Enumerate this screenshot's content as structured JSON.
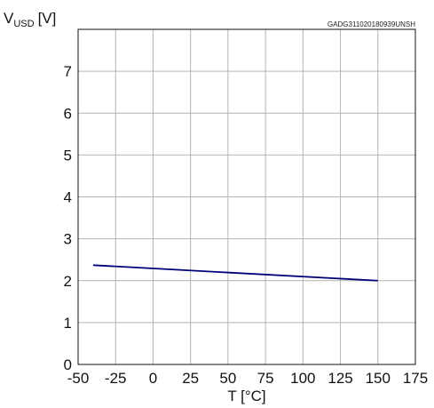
{
  "chart_data": {
    "type": "line",
    "title": "",
    "code": "GADG311020180939UNSH",
    "ylabel_main": "V",
    "ylabel_sub": "USD",
    "ylabel_unit": "[V]",
    "xlabel": "T [°C]",
    "xlim": [
      -50,
      175
    ],
    "ylim": [
      0,
      8
    ],
    "x_ticks": [
      -50,
      -25,
      0,
      25,
      50,
      75,
      100,
      125,
      150,
      175
    ],
    "x_tick_labels": [
      "-50",
      "-25",
      "0",
      "25",
      "50",
      "75",
      "100",
      "125",
      "150",
      "175"
    ],
    "y_ticks": [
      0,
      1,
      2,
      3,
      4,
      5,
      6,
      7
    ],
    "y_tick_labels": [
      "0",
      "1",
      "2",
      "3",
      "4",
      "5",
      "6",
      "7"
    ],
    "grid": true,
    "legend": false,
    "series": [
      {
        "x": [
          -40,
          150
        ],
        "y": [
          2.37,
          2.0
        ],
        "color": "#00007a"
      }
    ]
  }
}
